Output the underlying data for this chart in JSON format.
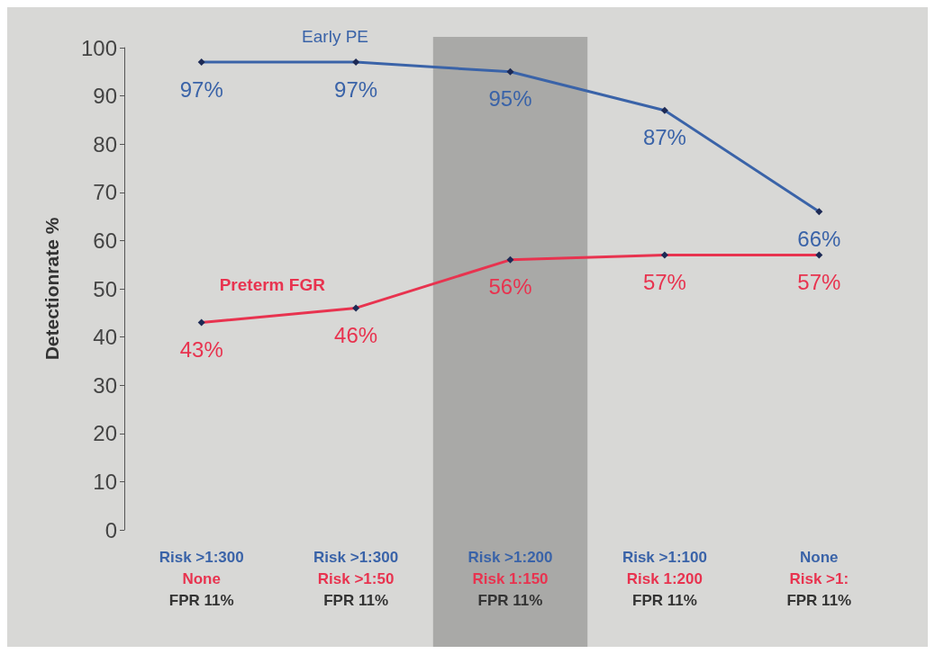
{
  "chart_data": {
    "type": "line",
    "ylabel": "Detectionrate %",
    "categories": [
      "Risk >1:300\nNone\nFPR 11%",
      "Risk >1:300\nRisk >1:50\nFPR 11%",
      "Risk >1:200\nRisk 1:150\nFPR 11%",
      "Risk >1:100\nRisk 1:200\nFPR 11%",
      "None\nRisk >1:\nFPR 11%"
    ],
    "series": [
      {
        "name": "Early PE",
        "color": "#3a63a8",
        "values": [
          97,
          97,
          95,
          87,
          66
        ],
        "value_labels": [
          "97%",
          "97%",
          "95%",
          "87%",
          "66%"
        ]
      },
      {
        "name": "Preterm FGR",
        "color": "#e8334f",
        "values": [
          43,
          46,
          56,
          57,
          57
        ],
        "value_labels": [
          "43%",
          "46%",
          "56%",
          "57%",
          "57%"
        ]
      }
    ],
    "bands": [
      {
        "axis": "x",
        "from": "Risk >1:200\nRisk 1:150\nFPR 11%",
        "to": "Risk >1:200\nRisk 1:150\nFPR 11%",
        "color": "#a9a9a7"
      }
    ],
    "ylim": [
      0,
      100
    ],
    "yticks": [
      0,
      10,
      20,
      30,
      40,
      50,
      60,
      70,
      80,
      90,
      100
    ],
    "grid": false,
    "legend": false,
    "marker": "diamond",
    "line_style": "solid"
  }
}
